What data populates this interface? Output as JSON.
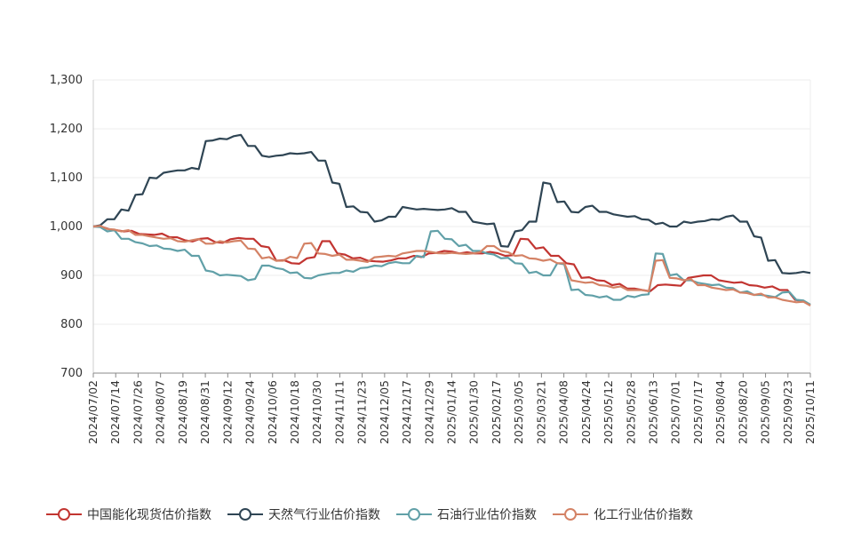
{
  "chart_data": {
    "type": "line",
    "title": "",
    "xlabel": "",
    "ylabel": "",
    "ylim": [
      700,
      1300
    ],
    "yticks": [
      "1,300",
      "1,200",
      "1,100",
      "1,000",
      "900",
      "800",
      "700"
    ],
    "ytick_values": [
      1300,
      1200,
      1100,
      1000,
      900,
      800,
      700
    ],
    "grid": true,
    "legend_position": "bottom",
    "x_ticks": [
      "2024/07/02",
      "2024/07/14",
      "2024/07/26",
      "2024/08/07",
      "2024/08/19",
      "2024/08/31",
      "2024/09/12",
      "2024/09/24",
      "2024/10/06",
      "2024/10/18",
      "2024/10/30",
      "2024/11/11",
      "2024/11/23",
      "2024/12/05",
      "2024/12/17",
      "2024/12/29",
      "2025/01/14",
      "2025/01/30",
      "2025/02/17",
      "2025/03/05",
      "2025/03/21",
      "2025/04/08",
      "2025/04/24",
      "2025/05/12",
      "2025/05/28",
      "2025/06/13",
      "2025/07/01",
      "2025/07/17",
      "2025/08/04",
      "2025/08/20",
      "2025/09/05",
      "2025/09/23",
      "2025/10/11"
    ],
    "series": [
      {
        "name": "中国能化现货估价指数",
        "color": "#c23531",
        "values": [
          1000,
          995,
          990,
          985,
          983,
          978,
          972,
          975,
          968,
          974,
          975,
          960,
          930,
          925,
          935,
          970,
          945,
          935,
          930,
          928,
          935,
          940,
          945,
          950,
          945,
          945,
          948,
          940,
          975,
          955,
          940,
          925,
          895,
          890,
          880,
          873,
          870,
          880,
          880,
          895,
          900,
          890,
          885,
          880,
          875,
          870,
          850,
          840
        ]
      },
      {
        "name": "天然气行业估价指数",
        "color": "#2f4554",
        "values": [
          1000,
          1015,
          1035,
          1065,
          1100,
          1110,
          1115,
          1120,
          1175,
          1180,
          1185,
          1165,
          1145,
          1145,
          1150,
          1150,
          1135,
          1090,
          1040,
          1030,
          1010,
          1020,
          1040,
          1035,
          1035,
          1035,
          1030,
          1010,
          1005,
          960,
          990,
          1010,
          1090,
          1050,
          1030,
          1040,
          1030,
          1025,
          1020,
          1015,
          1005,
          1000,
          1010,
          1010,
          1015,
          1020,
          1010,
          980,
          930,
          905,
          905,
          905
        ]
      },
      {
        "name": "石油行业估价指数",
        "color": "#61a0a8",
        "values": [
          1000,
          990,
          975,
          968,
          960,
          955,
          950,
          940,
          910,
          900,
          900,
          890,
          920,
          915,
          905,
          895,
          900,
          905,
          910,
          915,
          920,
          925,
          925,
          940,
          990,
          975,
          960,
          950,
          945,
          935,
          925,
          905,
          900,
          925,
          870,
          860,
          855,
          850,
          858,
          860,
          945,
          900,
          890,
          885,
          880,
          875,
          865,
          860,
          858,
          865,
          850,
          840
        ]
      },
      {
        "name": "化工行业估价指数",
        "color": "#d48265",
        "values": [
          1000,
          995,
          990,
          983,
          980,
          975,
          970,
          972,
          965,
          970,
          970,
          955,
          935,
          930,
          938,
          965,
          945,
          940,
          932,
          930,
          937,
          940,
          945,
          950,
          948,
          945,
          945,
          945,
          960,
          950,
          940,
          935,
          930,
          925,
          890,
          885,
          880,
          875,
          870,
          870,
          930,
          895,
          890,
          880,
          875,
          870,
          865,
          860,
          855,
          850,
          845,
          838
        ]
      }
    ]
  },
  "legend": {
    "items": [
      {
        "label": "中国能化现货估价指数",
        "color": "#c23531"
      },
      {
        "label": "天然气行业估价指数",
        "color": "#2f4554"
      },
      {
        "label": "石油行业估价指数",
        "color": "#61a0a8"
      },
      {
        "label": "化工行业估价指数",
        "color": "#d48265"
      }
    ]
  }
}
